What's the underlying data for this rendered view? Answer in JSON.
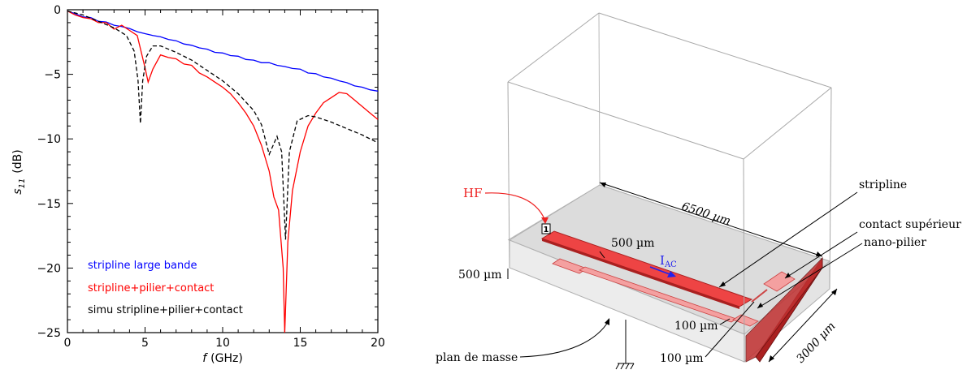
{
  "chart_data": {
    "type": "line",
    "xlabel": "f (GHz)",
    "xlabel_var": "f",
    "xlabel_unit": "(GHz)",
    "ylabel": "s11 (dB)",
    "ylabel_var": "s",
    "ylabel_sub": "11",
    "ylabel_unit": "(dB)",
    "xlim": [
      0,
      20
    ],
    "ylim": [
      -25,
      0
    ],
    "xticks": [
      0,
      5,
      10,
      15,
      20
    ],
    "yticks": [
      0,
      -5,
      -10,
      -15,
      -20,
      -25
    ],
    "legend_position": "bottom-left",
    "grid": false,
    "series": [
      {
        "name": "stripline large bande",
        "color": "#0000ff",
        "dash": "solid",
        "points": [
          [
            0,
            -0.1
          ],
          [
            0.5,
            -0.3
          ],
          [
            1,
            -0.55
          ],
          [
            1.5,
            -0.6
          ],
          [
            2,
            -0.9
          ],
          [
            2.5,
            -0.95
          ],
          [
            3,
            -1.2
          ],
          [
            3.5,
            -1.3
          ],
          [
            4,
            -1.45
          ],
          [
            4.5,
            -1.7
          ],
          [
            5,
            -1.85
          ],
          [
            5.5,
            -2.0
          ],
          [
            6,
            -2.1
          ],
          [
            6.5,
            -2.3
          ],
          [
            7,
            -2.4
          ],
          [
            7.5,
            -2.65
          ],
          [
            8,
            -2.75
          ],
          [
            8.5,
            -2.95
          ],
          [
            9,
            -3.05
          ],
          [
            9.5,
            -3.3
          ],
          [
            10,
            -3.35
          ],
          [
            10.5,
            -3.55
          ],
          [
            11,
            -3.6
          ],
          [
            11.5,
            -3.85
          ],
          [
            12,
            -3.9
          ],
          [
            12.5,
            -4.1
          ],
          [
            13,
            -4.1
          ],
          [
            13.5,
            -4.3
          ],
          [
            14,
            -4.4
          ],
          [
            14.5,
            -4.55
          ],
          [
            15,
            -4.6
          ],
          [
            15.5,
            -4.9
          ],
          [
            16,
            -4.95
          ],
          [
            16.5,
            -5.2
          ],
          [
            17,
            -5.3
          ],
          [
            17.5,
            -5.5
          ],
          [
            18,
            -5.65
          ],
          [
            18.5,
            -5.9
          ],
          [
            19,
            -6.0
          ],
          [
            19.5,
            -6.2
          ],
          [
            20,
            -6.3
          ]
        ]
      },
      {
        "name": "stripline+pilier+contact",
        "color": "#ff0000",
        "dash": "solid",
        "points": [
          [
            0,
            -0.1
          ],
          [
            0.5,
            -0.4
          ],
          [
            1,
            -0.6
          ],
          [
            1.5,
            -0.7
          ],
          [
            2,
            -1.0
          ],
          [
            2.5,
            -1.0
          ],
          [
            3,
            -1.5
          ],
          [
            3.5,
            -1.2
          ],
          [
            4,
            -1.6
          ],
          [
            4.5,
            -2.0
          ],
          [
            5,
            -4.5
          ],
          [
            5.2,
            -5.6
          ],
          [
            5.5,
            -4.6
          ],
          [
            6,
            -3.5
          ],
          [
            6.5,
            -3.7
          ],
          [
            7,
            -3.8
          ],
          [
            7.5,
            -4.2
          ],
          [
            8,
            -4.3
          ],
          [
            8.5,
            -4.9
          ],
          [
            9,
            -5.2
          ],
          [
            9.5,
            -5.6
          ],
          [
            10,
            -6.0
          ],
          [
            10.5,
            -6.5
          ],
          [
            11,
            -7.2
          ],
          [
            11.5,
            -8.0
          ],
          [
            12,
            -9.0
          ],
          [
            12.5,
            -10.5
          ],
          [
            13,
            -12.5
          ],
          [
            13.3,
            -14.5
          ],
          [
            13.6,
            -15.5
          ],
          [
            13.9,
            -20.0
          ],
          [
            14.0,
            -25
          ],
          [
            14.2,
            -18.0
          ],
          [
            14.5,
            -14.0
          ],
          [
            15,
            -11.0
          ],
          [
            15.5,
            -9.0
          ],
          [
            16,
            -8.0
          ],
          [
            16.5,
            -7.2
          ],
          [
            17,
            -6.8
          ],
          [
            17.5,
            -6.4
          ],
          [
            18,
            -6.5
          ],
          [
            18.5,
            -7.0
          ],
          [
            19,
            -7.5
          ],
          [
            19.5,
            -8.0
          ],
          [
            20,
            -8.5
          ]
        ]
      },
      {
        "name": "simu stripline+pilier+contact",
        "color": "#000000",
        "dash": "dashed",
        "points": [
          [
            0,
            -0.1
          ],
          [
            1,
            -0.4
          ],
          [
            2,
            -0.9
          ],
          [
            3,
            -1.4
          ],
          [
            3.8,
            -2.0
          ],
          [
            4.3,
            -3.2
          ],
          [
            4.55,
            -5.5
          ],
          [
            4.7,
            -8.8
          ],
          [
            4.85,
            -5.5
          ],
          [
            5.1,
            -3.6
          ],
          [
            5.5,
            -2.8
          ],
          [
            6,
            -2.8
          ],
          [
            7,
            -3.3
          ],
          [
            8,
            -3.9
          ],
          [
            9,
            -4.7
          ],
          [
            10,
            -5.5
          ],
          [
            11,
            -6.5
          ],
          [
            12,
            -7.8
          ],
          [
            12.5,
            -8.9
          ],
          [
            13,
            -11.2
          ],
          [
            13.5,
            -9.8
          ],
          [
            13.8,
            -11.0
          ],
          [
            14.05,
            -17.8
          ],
          [
            14.3,
            -11.0
          ],
          [
            14.8,
            -8.6
          ],
          [
            15.5,
            -8.2
          ],
          [
            16,
            -8.3
          ],
          [
            17,
            -8.7
          ],
          [
            18,
            -9.2
          ],
          [
            19,
            -9.7
          ],
          [
            20,
            -10.3
          ]
        ]
      }
    ]
  },
  "diagram": {
    "labels": {
      "hf": "HF",
      "port": "1",
      "iac_main": "I",
      "iac_sub": "AC",
      "dim_length": "6500 µm",
      "dim_strip_width": "500 µm",
      "dim_height": "500 µm",
      "dim_depth": "3000 µm",
      "dim_gap": "100 µm",
      "dim_pillar": "100 µm",
      "callout_stripline": "stripline",
      "callout_contact": "contact supérieur",
      "callout_pillar": "nano-pilier",
      "callout_ground": "plan de masse"
    },
    "colors": {
      "strip": "#ee4444",
      "strip_dark": "#aa2020",
      "pad": "#f4a0a0",
      "ground": "#dcdcdc",
      "box_edge": "#b0b0b0",
      "hf_text": "#ee2222",
      "iac": "#2222ee"
    }
  }
}
